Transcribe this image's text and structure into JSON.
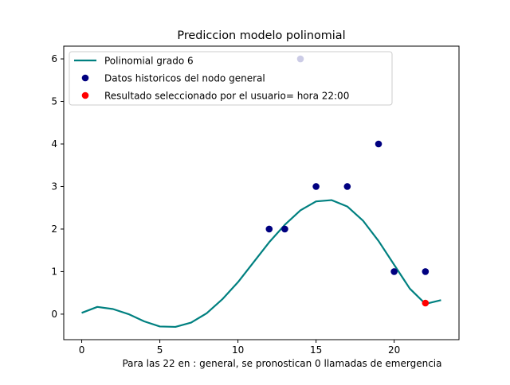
{
  "chart_data": {
    "type": "scatter",
    "title": "Prediccion modelo polinomial",
    "xlabel": "",
    "ylabel": "",
    "xlim": [
      -1.15,
      24.15
    ],
    "ylim": [
      -0.6,
      6.3
    ],
    "xticks": [
      0,
      5,
      10,
      15,
      20
    ],
    "yticks": [
      0,
      1,
      2,
      3,
      4,
      5,
      6
    ],
    "grid": false,
    "legend_position": "top-left",
    "series": [
      {
        "name": "Polinomial grado 6",
        "kind": "line",
        "color": "#008080",
        "x": [
          0,
          1,
          2,
          3,
          4,
          5,
          6,
          7,
          8,
          9,
          10,
          11,
          12,
          13,
          14,
          15,
          16,
          17,
          18,
          19,
          20,
          21,
          22,
          23
        ],
        "y": [
          0.03,
          0.17,
          0.12,
          0.0,
          -0.17,
          -0.29,
          -0.3,
          -0.2,
          0.02,
          0.35,
          0.75,
          1.22,
          1.69,
          2.1,
          2.44,
          2.65,
          2.68,
          2.53,
          2.2,
          1.72,
          1.16,
          0.6,
          0.24,
          0.33
        ]
      },
      {
        "name": "Datos historicos del nodo general",
        "kind": "scatter",
        "color": "#000080",
        "x": [
          12,
          13,
          14,
          15,
          17,
          19,
          20,
          22
        ],
        "y": [
          2,
          2,
          6,
          3,
          3,
          4,
          1,
          1
        ]
      },
      {
        "name": "Resultado seleccionado por el usuario= hora 22:00",
        "kind": "scatter",
        "color": "#ff0000",
        "x": [
          22
        ],
        "y": [
          0.26
        ]
      }
    ],
    "annotation": "Para las 22 en : general, se pronostican 0 llamadas de emergencia"
  }
}
